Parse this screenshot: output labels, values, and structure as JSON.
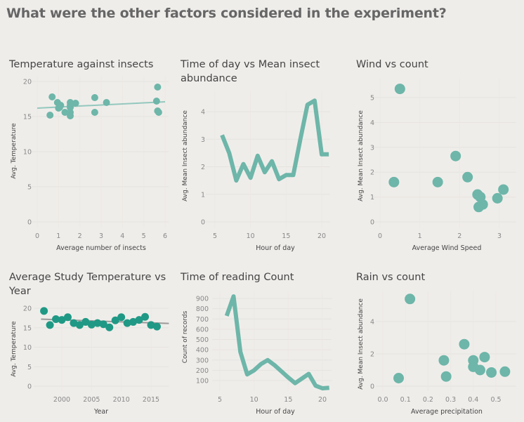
{
  "title": "What were the other factors considered in the experiment?",
  "colors": {
    "teal": "#6db6a9",
    "dark_teal": "#1f9985",
    "trend_teal": "#93c8be",
    "trend_gray": "#9a9a9a"
  },
  "chart_data": [
    {
      "type": "scatter",
      "title": "Temperature against insects",
      "xlabel": "Average number of insects",
      "ylabel": "Avg. Temperature",
      "xticks": [
        "0",
        "1",
        "2",
        "3",
        "4",
        "5",
        "6"
      ],
      "yticks": [
        "0",
        "5",
        "10",
        "15",
        "20"
      ],
      "xlim": [
        0,
        6
      ],
      "ylim": [
        0,
        20
      ],
      "trend": [
        [
          0,
          16.2
        ],
        [
          6,
          17.1
        ]
      ],
      "points": [
        [
          0.6,
          15.2
        ],
        [
          0.7,
          17.8
        ],
        [
          0.95,
          17
        ],
        [
          1.0,
          16.2
        ],
        [
          1.05,
          16.3
        ],
        [
          1.1,
          16.6
        ],
        [
          1.3,
          15.6
        ],
        [
          1.55,
          17
        ],
        [
          1.55,
          16.6
        ],
        [
          1.55,
          16.3
        ],
        [
          1.55,
          15.6
        ],
        [
          1.55,
          15.1
        ],
        [
          1.8,
          16.9
        ],
        [
          2.7,
          17.7
        ],
        [
          2.7,
          15.6
        ],
        [
          3.25,
          17
        ],
        [
          5.6,
          17.2
        ],
        [
          5.65,
          19.2
        ],
        [
          5.65,
          15.8
        ],
        [
          5.7,
          15.6
        ]
      ]
    },
    {
      "type": "line",
      "title": "Time of day vs Mean insect abundance",
      "xlabel": "Hour of day",
      "ylabel": "Avg. Mean Insect abundance",
      "xticks": [
        "5",
        "10",
        "15",
        "20"
      ],
      "yticks": [
        "0",
        "1",
        "2",
        "3",
        "4"
      ],
      "xlim": [
        5,
        21
      ],
      "ylim": [
        0,
        4.5
      ],
      "points": [
        [
          6,
          3.15
        ],
        [
          7,
          2.5
        ],
        [
          8,
          1.5
        ],
        [
          9,
          2.1
        ],
        [
          10,
          1.6
        ],
        [
          11,
          2.4
        ],
        [
          12,
          1.8
        ],
        [
          13,
          2.2
        ],
        [
          14,
          1.55
        ],
        [
          15,
          1.7
        ],
        [
          16,
          1.7
        ],
        [
          17,
          3.0
        ],
        [
          18,
          4.25
        ],
        [
          19,
          4.4
        ],
        [
          20,
          2.45
        ],
        [
          21,
          2.45
        ]
      ]
    },
    {
      "type": "scatter",
      "title": "Wind vs count",
      "xlabel": "Average Wind Speed",
      "ylabel": "Avg. Mean Insect abundance",
      "xticks": [
        "0",
        "1",
        "2",
        "3"
      ],
      "yticks": [
        "0",
        "1",
        "2",
        "3",
        "4",
        "5"
      ],
      "xlim": [
        0,
        3.3
      ],
      "ylim": [
        0,
        5.5
      ],
      "points": [
        [
          0.35,
          1.6
        ],
        [
          0.5,
          5.35
        ],
        [
          1.45,
          1.6
        ],
        [
          1.9,
          2.65
        ],
        [
          2.2,
          1.8
        ],
        [
          2.45,
          1.1
        ],
        [
          2.52,
          1.0
        ],
        [
          2.58,
          0.7
        ],
        [
          2.48,
          0.6
        ],
        [
          2.95,
          0.95
        ],
        [
          3.1,
          1.3
        ]
      ]
    },
    {
      "type": "scatter",
      "title": "Average Study Temperature vs Year",
      "xlabel": "Year",
      "ylabel": "Avg. Temperature",
      "xticks": [
        "2000",
        "2005",
        "2010",
        "2015"
      ],
      "yticks": [
        "0",
        "5",
        "10",
        "15",
        "20"
      ],
      "xlim": [
        1996,
        2018
      ],
      "ylim": [
        0,
        20
      ],
      "trend": [
        [
          1996.5,
          17.2
        ],
        [
          2018,
          16.1
        ]
      ],
      "points": [
        [
          1997,
          19.3
        ],
        [
          1998,
          15.7
        ],
        [
          1999,
          17.2
        ],
        [
          2000,
          17.0
        ],
        [
          2001,
          17.7
        ],
        [
          2002,
          16.2
        ],
        [
          2003,
          15.7
        ],
        [
          2004,
          16.5
        ],
        [
          2005,
          15.8
        ],
        [
          2006,
          16.2
        ],
        [
          2007,
          15.9
        ],
        [
          2008,
          15.1
        ],
        [
          2009,
          16.9
        ],
        [
          2010,
          17.7
        ],
        [
          2011,
          16.2
        ],
        [
          2012,
          16.5
        ],
        [
          2013,
          17.0
        ],
        [
          2014,
          17.8
        ],
        [
          2015,
          15.7
        ],
        [
          2016,
          15.3
        ]
      ]
    },
    {
      "type": "line",
      "title": "Time of reading Count",
      "xlabel": "Hour of day",
      "ylabel": "Count of records",
      "xticks": [
        "5",
        "10",
        "15",
        "20"
      ],
      "yticks": [
        "100",
        "200",
        "300",
        "400",
        "500",
        "600",
        "700",
        "800",
        "900"
      ],
      "xlim": [
        5,
        21
      ],
      "ylim": [
        0,
        950
      ],
      "points": [
        [
          6,
          730
        ],
        [
          7,
          920
        ],
        [
          8,
          380
        ],
        [
          9,
          160
        ],
        [
          10,
          200
        ],
        [
          11,
          260
        ],
        [
          12,
          300
        ],
        [
          13,
          250
        ],
        [
          14,
          190
        ],
        [
          15,
          130
        ],
        [
          16,
          75
        ],
        [
          17,
          120
        ],
        [
          18,
          165
        ],
        [
          19,
          50
        ],
        [
          20,
          25
        ],
        [
          21,
          30
        ]
      ]
    },
    {
      "type": "scatter",
      "title": "Rain vs count",
      "xlabel": "Average precipitation",
      "ylabel": "Avg. Mean Insect abundance",
      "xticks": [
        "0.0",
        "0.1",
        "0.2",
        "0.3",
        "0.4",
        "0.5"
      ],
      "yticks": [
        "0",
        "2",
        "4"
      ],
      "xlim": [
        0,
        0.55
      ],
      "ylim": [
        0,
        5.5
      ],
      "points": [
        [
          0.07,
          0.5
        ],
        [
          0.12,
          5.4
        ],
        [
          0.27,
          1.6
        ],
        [
          0.28,
          0.6
        ],
        [
          0.36,
          2.6
        ],
        [
          0.4,
          1.6
        ],
        [
          0.4,
          1.2
        ],
        [
          0.43,
          1.0
        ],
        [
          0.45,
          1.8
        ],
        [
          0.48,
          0.85
        ],
        [
          0.54,
          0.9
        ]
      ]
    }
  ]
}
